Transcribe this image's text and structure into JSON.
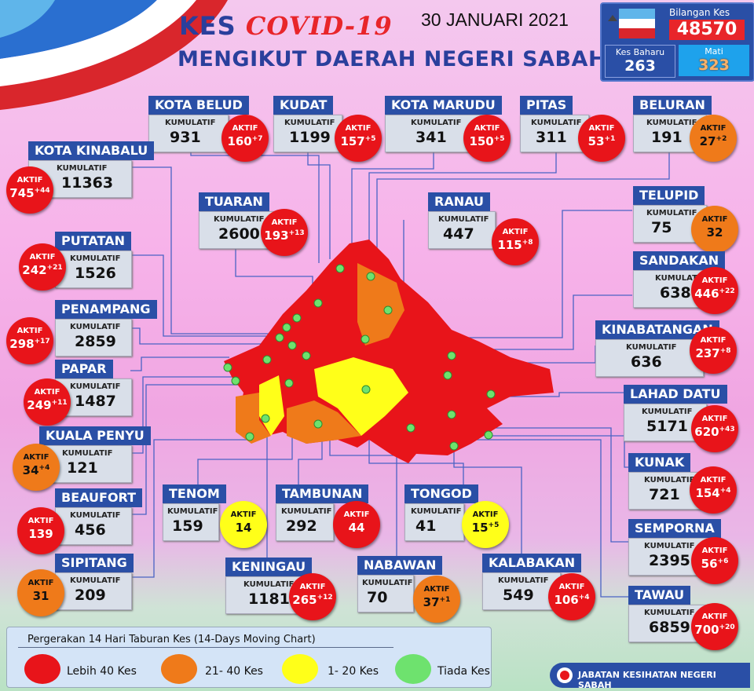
{
  "title": {
    "prefix": "KES",
    "highlight": "COVID-19",
    "line2": "MENGIKUT DAERAH NEGERI SABAH"
  },
  "date": "30 JANUARI 2021",
  "stats": {
    "bilangan_label": "Bilangan Kes",
    "bilangan_value": "48570",
    "baharu_label": "Kes Baharu",
    "baharu_value": "263",
    "mati_label": "Mati",
    "mati_value": "323"
  },
  "labels": {
    "kumulatif": "KUMULATIF",
    "aktif": "AKTIF"
  },
  "colors": {
    "red": "#e8141a",
    "orange": "#ef7a1a",
    "yellow": "#ffff19",
    "green": "#6ee26e",
    "accent": "#2a4fa6"
  },
  "districts": [
    {
      "name": "KOTA BELUD",
      "kumulatif": "931",
      "aktif": "160",
      "aktif_new": "+7",
      "level": "red"
    },
    {
      "name": "KUDAT",
      "kumulatif": "1199",
      "aktif": "157",
      "aktif_new": "+5",
      "level": "red"
    },
    {
      "name": "KOTA MARUDU",
      "kumulatif": "341",
      "aktif": "150",
      "aktif_new": "+5",
      "level": "red"
    },
    {
      "name": "PITAS",
      "kumulatif": "311",
      "aktif": "53",
      "aktif_new": "+1",
      "level": "red"
    },
    {
      "name": "BELURAN",
      "kumulatif": "191",
      "aktif": "27",
      "aktif_new": "+2",
      "level": "orange"
    },
    {
      "name": "KOTA KINABALU",
      "kumulatif": "11363",
      "aktif": "745",
      "aktif_new": "+44",
      "level": "red"
    },
    {
      "name": "TUARAN",
      "kumulatif": "2600",
      "aktif": "193",
      "aktif_new": "+13",
      "level": "red"
    },
    {
      "name": "RANAU",
      "kumulatif": "447",
      "aktif": "115",
      "aktif_new": "+8",
      "level": "red"
    },
    {
      "name": "TELUPID",
      "kumulatif": "75",
      "aktif": "32",
      "aktif_new": "",
      "level": "orange"
    },
    {
      "name": "PUTATAN",
      "kumulatif": "1526",
      "aktif": "242",
      "aktif_new": "+21",
      "level": "red"
    },
    {
      "name": "SANDAKAN",
      "kumulatif": "6380",
      "aktif": "446",
      "aktif_new": "+22",
      "level": "red"
    },
    {
      "name": "PENAMPANG",
      "kumulatif": "2859",
      "aktif": "298",
      "aktif_new": "+17",
      "level": "red"
    },
    {
      "name": "KINABATANGAN",
      "kumulatif": "636",
      "aktif": "237",
      "aktif_new": "+8",
      "level": "red"
    },
    {
      "name": "PAPAR",
      "kumulatif": "1487",
      "aktif": "249",
      "aktif_new": "+11",
      "level": "red"
    },
    {
      "name": "LAHAD DATU",
      "kumulatif": "5171",
      "aktif": "620",
      "aktif_new": "+43",
      "level": "red"
    },
    {
      "name": "KUALA PENYU",
      "kumulatif": "121",
      "aktif": "34",
      "aktif_new": "+4",
      "level": "orange"
    },
    {
      "name": "KUNAK",
      "kumulatif": "721",
      "aktif": "154",
      "aktif_new": "+4",
      "level": "red"
    },
    {
      "name": "BEAUFORT",
      "kumulatif": "456",
      "aktif": "139",
      "aktif_new": "",
      "level": "red"
    },
    {
      "name": "TENOM",
      "kumulatif": "159",
      "aktif": "14",
      "aktif_new": "",
      "level": "yellow"
    },
    {
      "name": "TAMBUNAN",
      "kumulatif": "292",
      "aktif": "44",
      "aktif_new": "",
      "level": "red"
    },
    {
      "name": "TONGOD",
      "kumulatif": "41",
      "aktif": "15",
      "aktif_new": "+5",
      "level": "yellow"
    },
    {
      "name": "SEMPORNA",
      "kumulatif": "2395",
      "aktif": "56",
      "aktif_new": "+6",
      "level": "red"
    },
    {
      "name": "SIPITANG",
      "kumulatif": "209",
      "aktif": "31",
      "aktif_new": "",
      "level": "orange"
    },
    {
      "name": "KENINGAU",
      "kumulatif": "1181",
      "aktif": "265",
      "aktif_new": "+12",
      "level": "red"
    },
    {
      "name": "NABAWAN",
      "kumulatif": "70",
      "aktif": "37",
      "aktif_new": "+1",
      "level": "orange"
    },
    {
      "name": "KALABAKAN",
      "kumulatif": "549",
      "aktif": "106",
      "aktif_new": "+4",
      "level": "red"
    },
    {
      "name": "TAWAU",
      "kumulatif": "6859",
      "aktif": "700",
      "aktif_new": "+20",
      "level": "red"
    }
  ],
  "legend": {
    "title": "Pergerakan 14 Hari Taburan Kes (14-Days Moving Chart)",
    "items": [
      {
        "label": "Lebih 40 Kes",
        "color": "#e8141a"
      },
      {
        "label": "21- 40 Kes",
        "color": "#ef7a1a"
      },
      {
        "label": "1- 20 Kes",
        "color": "#ffff19"
      },
      {
        "label": "Tiada Kes",
        "color": "#6ee26e"
      }
    ]
  },
  "footer": "JABATAN KESIHATAN NEGERI SABAH"
}
